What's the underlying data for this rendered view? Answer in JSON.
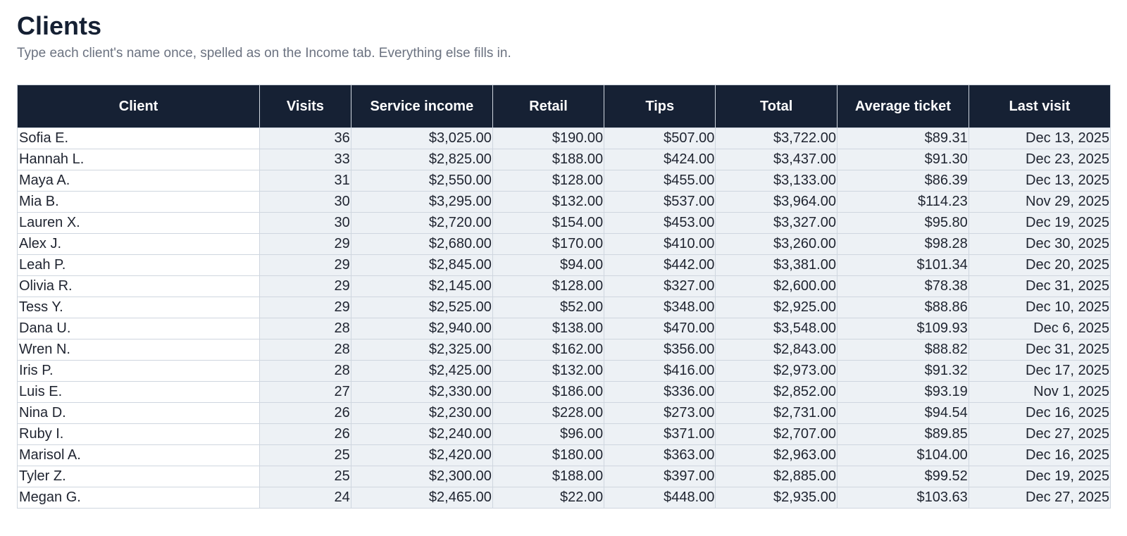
{
  "header": {
    "title": "Clients",
    "subtitle": "Type each client's name once, spelled as on the Income tab. Everything else fills in."
  },
  "table": {
    "columns": [
      "Client",
      "Visits",
      "Service income",
      "Retail",
      "Tips",
      "Total",
      "Average ticket",
      "Last visit"
    ],
    "rows": [
      [
        "Sofia E.",
        "36",
        "$3,025.00",
        "$190.00",
        "$507.00",
        "$3,722.00",
        "$89.31",
        "Dec 13, 2025"
      ],
      [
        "Hannah L.",
        "33",
        "$2,825.00",
        "$188.00",
        "$424.00",
        "$3,437.00",
        "$91.30",
        "Dec 23, 2025"
      ],
      [
        "Maya A.",
        "31",
        "$2,550.00",
        "$128.00",
        "$455.00",
        "$3,133.00",
        "$86.39",
        "Dec 13, 2025"
      ],
      [
        "Mia B.",
        "30",
        "$3,295.00",
        "$132.00",
        "$537.00",
        "$3,964.00",
        "$114.23",
        "Nov 29, 2025"
      ],
      [
        "Lauren X.",
        "30",
        "$2,720.00",
        "$154.00",
        "$453.00",
        "$3,327.00",
        "$95.80",
        "Dec 19, 2025"
      ],
      [
        "Alex J.",
        "29",
        "$2,680.00",
        "$170.00",
        "$410.00",
        "$3,260.00",
        "$98.28",
        "Dec 30, 2025"
      ],
      [
        "Leah P.",
        "29",
        "$2,845.00",
        "$94.00",
        "$442.00",
        "$3,381.00",
        "$101.34",
        "Dec 20, 2025"
      ],
      [
        "Olivia R.",
        "29",
        "$2,145.00",
        "$128.00",
        "$327.00",
        "$2,600.00",
        "$78.38",
        "Dec 31, 2025"
      ],
      [
        "Tess Y.",
        "29",
        "$2,525.00",
        "$52.00",
        "$348.00",
        "$2,925.00",
        "$88.86",
        "Dec 10, 2025"
      ],
      [
        "Dana U.",
        "28",
        "$2,940.00",
        "$138.00",
        "$470.00",
        "$3,548.00",
        "$109.93",
        "Dec 6, 2025"
      ],
      [
        "Wren N.",
        "28",
        "$2,325.00",
        "$162.00",
        "$356.00",
        "$2,843.00",
        "$88.82",
        "Dec 31, 2025"
      ],
      [
        "Iris P.",
        "28",
        "$2,425.00",
        "$132.00",
        "$416.00",
        "$2,973.00",
        "$91.32",
        "Dec 17, 2025"
      ],
      [
        "Luis E.",
        "27",
        "$2,330.00",
        "$186.00",
        "$336.00",
        "$2,852.00",
        "$93.19",
        "Nov 1, 2025"
      ],
      [
        "Nina D.",
        "26",
        "$2,230.00",
        "$228.00",
        "$273.00",
        "$2,731.00",
        "$94.54",
        "Dec 16, 2025"
      ],
      [
        "Ruby I.",
        "26",
        "$2,240.00",
        "$96.00",
        "$371.00",
        "$2,707.00",
        "$89.85",
        "Dec 27, 2025"
      ],
      [
        "Marisol A.",
        "25",
        "$2,420.00",
        "$180.00",
        "$363.00",
        "$2,963.00",
        "$104.00",
        "Dec 16, 2025"
      ],
      [
        "Tyler Z.",
        "25",
        "$2,300.00",
        "$188.00",
        "$397.00",
        "$2,885.00",
        "$99.52",
        "Dec 19, 2025"
      ],
      [
        "Megan G.",
        "24",
        "$2,465.00",
        "$22.00",
        "$448.00",
        "$2,935.00",
        "$103.63",
        "Dec 27, 2025"
      ]
    ]
  },
  "colors": {
    "header_bg": "#162134",
    "header_text": "#ffffff",
    "numeric_cell_bg": "#edf1f5",
    "grid_line": "#cfd6df",
    "title_text": "#152033",
    "subtitle_text": "#6b7280"
  }
}
